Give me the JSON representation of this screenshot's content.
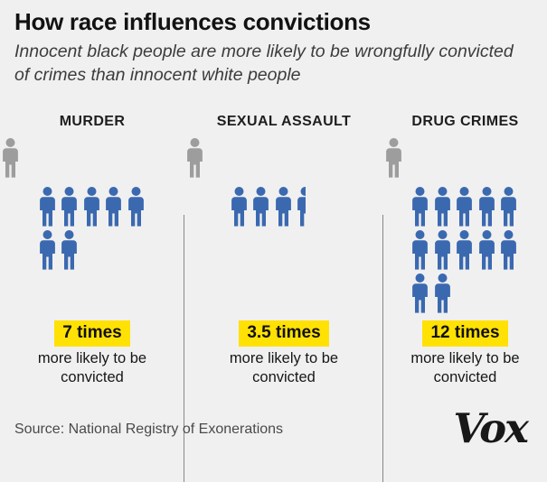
{
  "title": "How race influences convictions",
  "subtitle": "Innocent black people are more likely to be wrongfully convicted of crimes than innocent white people",
  "source": "Source: National Registry of Exonerations",
  "logo_text": "Vox",
  "colors": {
    "background": "#f0f0f1",
    "figure_blue": "#3b69b0",
    "figure_gray": "#9d9d9d",
    "highlight_yellow": "#ffe104",
    "divider": "#878787"
  },
  "chart_data": {
    "type": "pictogram",
    "title": "How race influences convictions",
    "subtitle": "Innocent black people are more likely to be wrongfully convicted of crimes than innocent white people",
    "categories": [
      "MURDER",
      "SEXUAL ASSAULT",
      "DRUG CRIMES"
    ],
    "values": [
      7,
      3.5,
      12
    ],
    "value_labels": [
      "7 times",
      "3.5 times",
      "12 times"
    ],
    "caption": "more likely to be convicted",
    "baseline_figures_per_category": 1,
    "unit_icon": "person",
    "max_icons_per_row": 5,
    "source": "Source: National Registry of Exonerations"
  },
  "columns": [
    {
      "header": "MURDER",
      "count": 7,
      "times_label": "7 times",
      "caption": "more likely to be convicted"
    },
    {
      "header": "SEXUAL ASSAULT",
      "count": 3.5,
      "times_label": "3.5 times",
      "caption": "more likely to be convicted"
    },
    {
      "header": "DRUG CRIMES",
      "count": 12,
      "times_label": "12 times",
      "caption": "more likely to be convicted"
    }
  ]
}
